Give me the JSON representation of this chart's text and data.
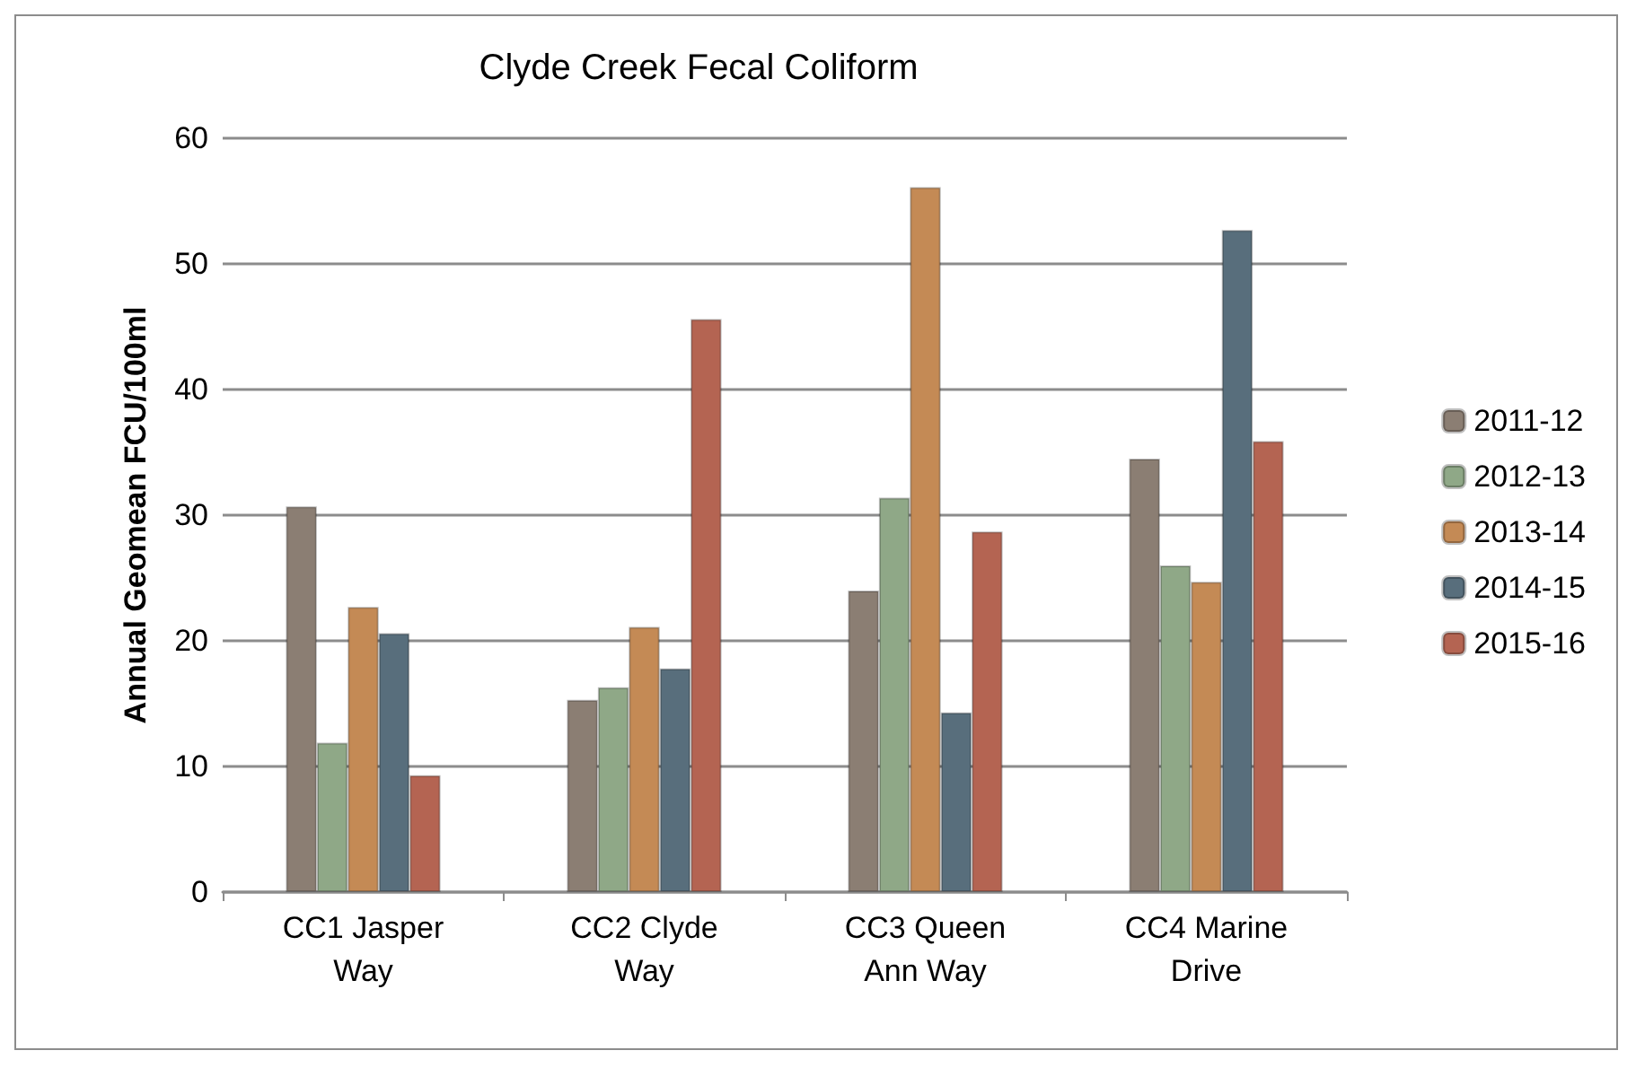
{
  "chart_data": {
    "type": "bar",
    "title": "Clyde Creek Fecal Coliform",
    "ylabel": "Annual Geomean FCU/100ml",
    "categories": [
      "CC1 Jasper\nWay",
      "CC2 Clyde\nWay",
      "CC3 Queen\nAnn Way",
      "CC4 Marine\nDrive"
    ],
    "series": [
      {
        "name": "2011-12",
        "color": "#8b7e73",
        "values": [
          30.7,
          15.3,
          24.0,
          34.5
        ]
      },
      {
        "name": "2012-13",
        "color": "#8fa887",
        "values": [
          11.9,
          16.3,
          31.4,
          26.0
        ]
      },
      {
        "name": "2013-14",
        "color": "#c48a55",
        "values": [
          22.7,
          21.1,
          56.1,
          24.7
        ]
      },
      {
        "name": "2014-15",
        "color": "#586e7c",
        "values": [
          20.6,
          17.8,
          14.3,
          52.7
        ]
      },
      {
        "name": "2015-16",
        "color": "#b46452",
        "values": [
          9.3,
          45.6,
          28.7,
          35.9
        ]
      }
    ],
    "ylim": [
      0,
      60
    ],
    "yticks": [
      0,
      10,
      20,
      30,
      40,
      50,
      60
    ],
    "grid": "y",
    "legend": "right"
  }
}
